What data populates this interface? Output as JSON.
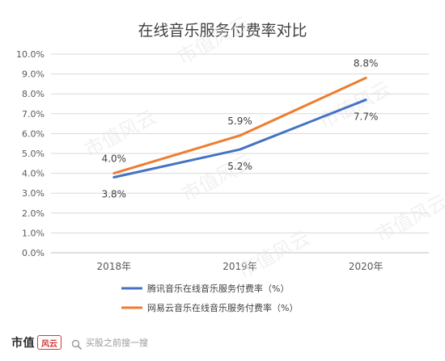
{
  "chart_data": {
    "type": "line",
    "title": "在线音乐服务付费率对比",
    "categories": [
      "2018年",
      "2019年",
      "2020年"
    ],
    "yticks": [
      "0.0%",
      "1.0%",
      "2.0%",
      "3.0%",
      "4.0%",
      "5.0%",
      "6.0%",
      "7.0%",
      "8.0%",
      "9.0%",
      "10.0%"
    ],
    "ylim": [
      0,
      10
    ],
    "grid": true,
    "legend_position": "bottom",
    "series": [
      {
        "name": "腾讯音乐在线音乐服务付费率（%）",
        "values": [
          3.8,
          5.2,
          7.7
        ],
        "labels": [
          "3.8%",
          "5.2%",
          "7.7%"
        ],
        "color": "#4472c4"
      },
      {
        "name": "网易云音乐在线音乐服务付费率（%）",
        "values": [
          4.0,
          5.9,
          8.8
        ],
        "labels": [
          "4.0%",
          "5.9%",
          "8.8%"
        ],
        "color": "#ed7d31"
      }
    ]
  },
  "watermark": "市值风云",
  "footer": {
    "brand": "市值",
    "seal_text": "风云",
    "search_icon": "search-icon",
    "search_text": "买股之前搜一搜"
  }
}
